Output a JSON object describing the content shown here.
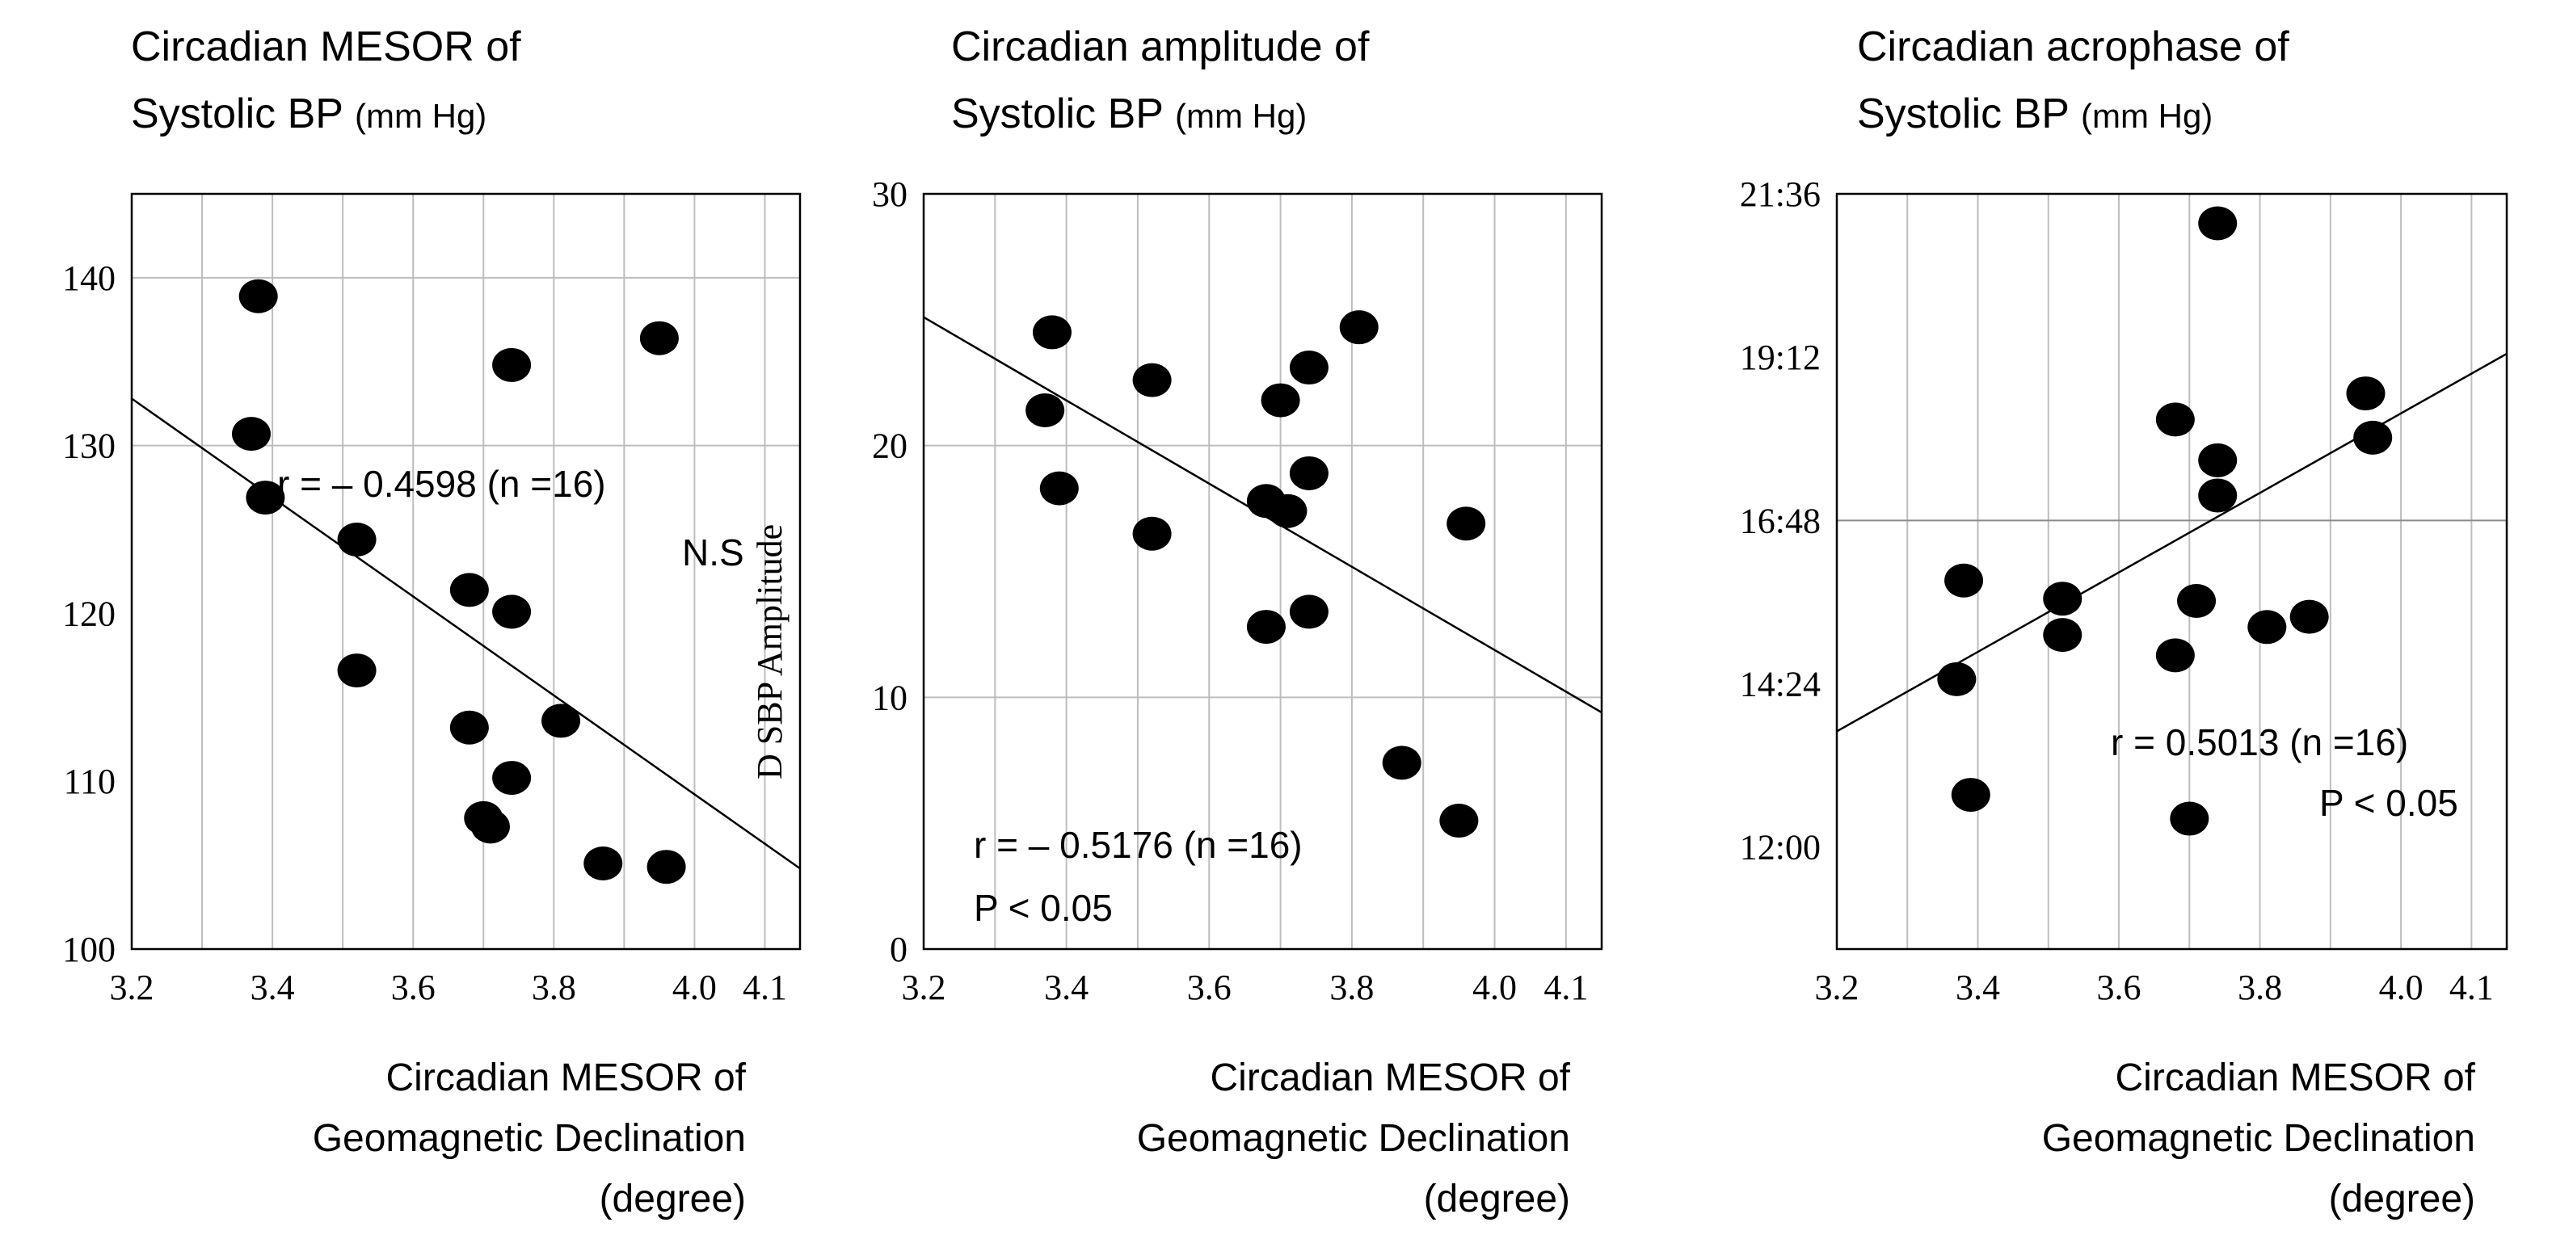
{
  "chart_data": [
    {
      "type": "scatter",
      "title_line1": "Circadian MESOR of",
      "title_line2": "Systolic BP",
      "title_unit": "(mm Hg)",
      "xlabel_lines": [
        "Circadian MESOR of",
        "Geomagnetic Declination",
        "(degree)"
      ],
      "ylabel": "",
      "xlim": [
        3.2,
        4.15
      ],
      "ylim": [
        100,
        145
      ],
      "x_ticks": [
        3.2,
        3.4,
        3.6,
        3.8,
        4.0,
        4.1
      ],
      "x_tick_labels": [
        "3.2",
        "3.4",
        "3.6",
        "3.8",
        "4.0",
        "4.1"
      ],
      "x_grid": [
        3.3,
        3.4,
        3.5,
        3.6,
        3.7,
        3.8,
        3.9,
        4.0,
        4.1
      ],
      "y_ticks": [
        100,
        110,
        120,
        130,
        140
      ],
      "y_tick_labels": [
        "100",
        "110",
        "120",
        "130",
        "140"
      ],
      "y_grid": [
        130,
        140
      ],
      "y_grid_major": [],
      "points": [
        {
          "x": 3.38,
          "y": 138.9
        },
        {
          "x": 3.37,
          "y": 130.7
        },
        {
          "x": 3.39,
          "y": 126.9
        },
        {
          "x": 3.52,
          "y": 124.4
        },
        {
          "x": 3.52,
          "y": 116.6
        },
        {
          "x": 3.68,
          "y": 121.4
        },
        {
          "x": 3.68,
          "y": 113.2
        },
        {
          "x": 3.74,
          "y": 134.8
        },
        {
          "x": 3.74,
          "y": 120.1
        },
        {
          "x": 3.74,
          "y": 110.2
        },
        {
          "x": 3.7,
          "y": 107.8
        },
        {
          "x": 3.71,
          "y": 107.3
        },
        {
          "x": 3.81,
          "y": 113.6
        },
        {
          "x": 3.87,
          "y": 105.1
        },
        {
          "x": 3.95,
          "y": 136.4
        },
        {
          "x": 3.96,
          "y": 104.9
        }
      ],
      "regression": {
        "x": [
          3.2,
          4.15
        ],
        "y": [
          132.8,
          104.8
        ]
      },
      "annotations": [
        "r = – 0.4598 (n =16)",
        "N.S",
        "D SBP Amplitude"
      ]
    },
    {
      "type": "scatter",
      "title_line1": "Circadian amplitude of",
      "title_line2": "Systolic BP",
      "title_unit": "(mm Hg)",
      "xlabel_lines": [
        "Circadian MESOR of",
        "Geomagnetic Declination",
        "(degree)"
      ],
      "ylabel": "",
      "xlim": [
        3.2,
        4.15
      ],
      "ylim": [
        0,
        30
      ],
      "x_ticks": [
        3.2,
        3.4,
        3.6,
        3.8,
        4.0,
        4.1
      ],
      "x_tick_labels": [
        "3.2",
        "3.4",
        "3.6",
        "3.8",
        "4.0",
        "4.1"
      ],
      "x_grid": [
        3.3,
        3.4,
        3.5,
        3.6,
        3.7,
        3.8,
        3.9,
        4.0,
        4.1
      ],
      "y_ticks": [
        0,
        10,
        20,
        30
      ],
      "y_tick_labels": [
        "0",
        "10",
        "20",
        "30"
      ],
      "y_grid": [
        10,
        20
      ],
      "y_grid_major": [],
      "points": [
        {
          "x": 3.38,
          "y": 24.5
        },
        {
          "x": 3.37,
          "y": 21.4
        },
        {
          "x": 3.39,
          "y": 18.3
        },
        {
          "x": 3.52,
          "y": 22.6
        },
        {
          "x": 3.52,
          "y": 16.5
        },
        {
          "x": 3.68,
          "y": 17.8
        },
        {
          "x": 3.68,
          "y": 12.8
        },
        {
          "x": 3.7,
          "y": 21.8
        },
        {
          "x": 3.71,
          "y": 17.4
        },
        {
          "x": 3.74,
          "y": 23.1
        },
        {
          "x": 3.74,
          "y": 18.9
        },
        {
          "x": 3.74,
          "y": 13.4
        },
        {
          "x": 3.81,
          "y": 24.7
        },
        {
          "x": 3.87,
          "y": 7.4
        },
        {
          "x": 3.95,
          "y": 5.1
        },
        {
          "x": 3.96,
          "y": 16.9
        }
      ],
      "regression": {
        "x": [
          3.2,
          4.15
        ],
        "y": [
          25.1,
          9.4
        ]
      },
      "annotations": [
        "r = – 0.5176 (n =16)",
        "P < 0.05"
      ]
    },
    {
      "type": "scatter",
      "title_line1": "Circadian acrophase of",
      "title_line2": "Systolic BP",
      "title_unit": "(mm Hg)",
      "xlabel_lines": [
        "Circadian MESOR of",
        "Geomagnetic Declination",
        "(degree)"
      ],
      "ylabel": "",
      "y_units": "minutes since midnight",
      "xlim": [
        3.2,
        4.15
      ],
      "ylim": [
        630,
        1296
      ],
      "x_ticks": [
        3.2,
        3.4,
        3.6,
        3.8,
        4.0,
        4.1
      ],
      "x_tick_labels": [
        "3.2",
        "3.4",
        "3.6",
        "3.8",
        "4.0",
        "4.1"
      ],
      "x_grid": [
        3.3,
        3.4,
        3.5,
        3.6,
        3.7,
        3.8,
        3.9,
        4.0,
        4.1
      ],
      "y_ticks": [
        720,
        864,
        1008,
        1152,
        1296
      ],
      "y_tick_labels": [
        "12:00",
        "14:24",
        "16:48",
        "19:12",
        "21:36"
      ],
      "y_grid": [],
      "y_grid_major": [
        1008
      ],
      "points": [
        {
          "x": 3.37,
          "y": 868
        },
        {
          "x": 3.38,
          "y": 955
        },
        {
          "x": 3.39,
          "y": 766
        },
        {
          "x": 3.52,
          "y": 939
        },
        {
          "x": 3.52,
          "y": 907
        },
        {
          "x": 3.68,
          "y": 1097
        },
        {
          "x": 3.68,
          "y": 889
        },
        {
          "x": 3.7,
          "y": 745
        },
        {
          "x": 3.71,
          "y": 937
        },
        {
          "x": 3.74,
          "y": 1061
        },
        {
          "x": 3.74,
          "y": 1030
        },
        {
          "x": 3.74,
          "y": 1270
        },
        {
          "x": 3.81,
          "y": 914
        },
        {
          "x": 3.87,
          "y": 923
        },
        {
          "x": 3.95,
          "y": 1120
        },
        {
          "x": 3.96,
          "y": 1081
        }
      ],
      "regression": {
        "x": [
          3.2,
          4.15
        ],
        "y": [
          822,
          1155
        ]
      },
      "annotations": [
        "r = 0.5013 (n =16)",
        "P < 0.05"
      ]
    }
  ]
}
